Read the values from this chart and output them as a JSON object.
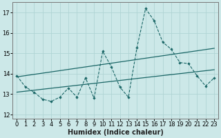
{
  "xlabel": "Humidex (Indice chaleur)",
  "bg_color": "#cce8e8",
  "grid_color": "#b0d4d4",
  "line_color": "#1a6666",
  "xlim": [
    -0.5,
    23.5
  ],
  "ylim": [
    11.8,
    17.5
  ],
  "yticks": [
    12,
    13,
    14,
    15,
    16,
    17
  ],
  "xticks": [
    0,
    1,
    2,
    3,
    4,
    5,
    6,
    7,
    8,
    9,
    10,
    11,
    12,
    13,
    14,
    15,
    16,
    17,
    18,
    19,
    20,
    21,
    22,
    23
  ],
  "series1_x": [
    0,
    1,
    2,
    3,
    4,
    5,
    6,
    7,
    8,
    9,
    10,
    11,
    12,
    13,
    14,
    15,
    16,
    17,
    18,
    19,
    20,
    21,
    22,
    23
  ],
  "series1_y": [
    13.9,
    13.35,
    13.1,
    12.75,
    12.65,
    12.85,
    13.3,
    12.85,
    13.8,
    12.8,
    15.1,
    14.35,
    13.35,
    12.85,
    15.3,
    17.2,
    16.6,
    15.55,
    15.2,
    14.55,
    14.5,
    13.9,
    13.4,
    13.8
  ],
  "series2_x": [
    0,
    23
  ],
  "series2_y": [
    13.1,
    14.2
  ],
  "series3_x": [
    0,
    23
  ],
  "series3_y": [
    13.85,
    15.25
  ],
  "tick_fontsize": 6,
  "xlabel_fontsize": 7
}
